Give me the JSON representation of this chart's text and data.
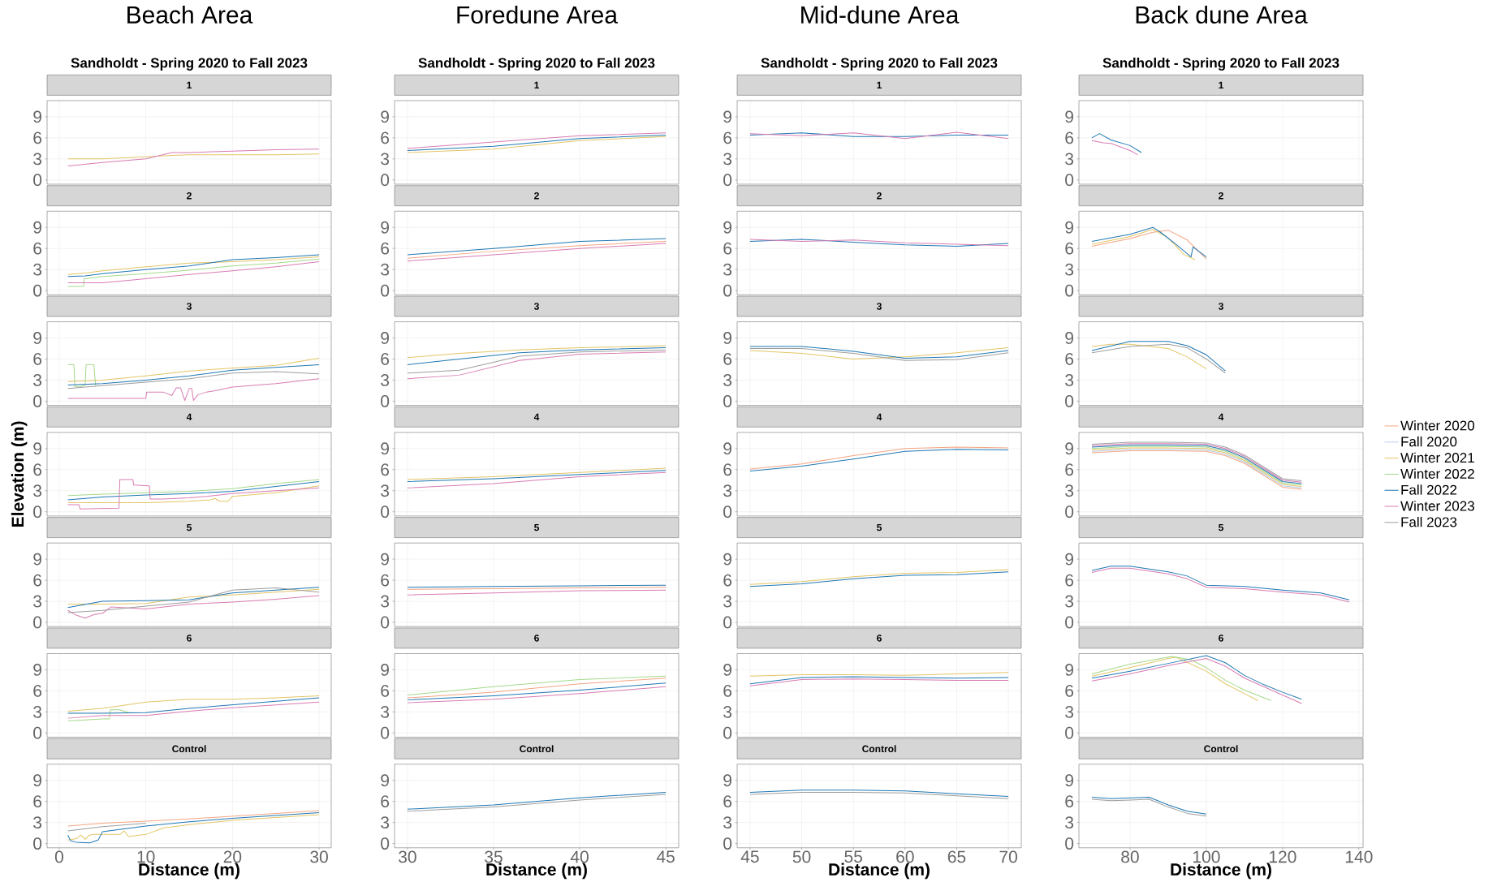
{
  "chart_data": [
    {
      "type": "line",
      "title": "1",
      "annotations": [
        "Beach Area",
        "Sandholdt - Spring 2020 to Fall 2023"
      ],
      "tick_labels": "y",
      "xlim": [
        -1.4,
        31.4
      ],
      "xticks": [
        0,
        10,
        20,
        30
      ],
      "ylim": [
        -0.6,
        11.3
      ],
      "yticks": [
        0,
        3,
        6,
        9
      ],
      "grid": true,
      "x": [
        1,
        5,
        10,
        13,
        15,
        20,
        25,
        30
      ],
      "series": [
        {
          "color": "#e3c565",
          "values": [
            3.0,
            3.0,
            3.3,
            3.5,
            3.6,
            3.6,
            3.6,
            3.7
          ]
        },
        {
          "color": "#d97cb3",
          "values": [
            2.0,
            2.5,
            3.0,
            3.9,
            3.9,
            4.1,
            4.3,
            4.4
          ]
        }
      ]
    },
    {
      "type": "line",
      "title": "1",
      "annotations": [
        "Foredune Area",
        "Sandholdt - Spring 2020 to Fall 2023"
      ],
      "tick_labels": "y",
      "xlim": [
        29.25,
        45.75
      ],
      "xticks": [
        30,
        35,
        40,
        45
      ],
      "ylim": [
        -0.6,
        11.3
      ],
      "yticks": [
        0,
        3,
        6,
        9
      ],
      "grid": true,
      "x": [
        30,
        35,
        40,
        45
      ],
      "series": [
        {
          "color": "#e3c565",
          "values": [
            3.9,
            4.4,
            5.6,
            6.2
          ]
        },
        {
          "color": "#1f78b4",
          "values": [
            4.2,
            4.8,
            5.9,
            6.4
          ]
        },
        {
          "color": "#d97cb3",
          "values": [
            4.5,
            5.4,
            6.3,
            6.7
          ]
        }
      ]
    },
    {
      "type": "line",
      "title": "1",
      "annotations": [
        "Mid-dune Area",
        "Sandholdt - Spring 2020 to Fall 2023"
      ],
      "tick_labels": "y",
      "xlim": [
        43.75,
        71.25
      ],
      "xticks": [
        45,
        50,
        55,
        60,
        65,
        70
      ],
      "ylim": [
        -0.6,
        11.3
      ],
      "yticks": [
        0,
        3,
        6,
        9
      ],
      "grid": true,
      "x": [
        45,
        50,
        55,
        60,
        65,
        70
      ],
      "series": [
        {
          "color": "#1f78b4",
          "values": [
            6.4,
            6.7,
            6.2,
            6.2,
            6.4,
            6.4
          ]
        },
        {
          "color": "#d97cb3",
          "values": [
            6.6,
            6.3,
            6.7,
            5.9,
            6.8,
            5.9
          ]
        }
      ]
    },
    {
      "type": "line",
      "title": "1",
      "annotations": [
        "Back dune Area",
        "Sandholdt - Spring 2020 to Fall 2023"
      ],
      "tick_labels": "y",
      "xlim": [
        66.6,
        141.1
      ],
      "xticks": [
        80,
        100,
        120,
        140
      ],
      "ylim": [
        -0.6,
        11.3
      ],
      "yticks": [
        0,
        3,
        6,
        9
      ],
      "grid": true,
      "x": [
        70,
        72,
        75,
        80,
        83
      ],
      "series": [
        {
          "color": "#1f78b4",
          "values": [
            6.0,
            6.6,
            5.7,
            4.9,
            3.9
          ]
        },
        {
          "color": "#d97cb3",
          "x": [
            70,
            73,
            75,
            80,
            82
          ],
          "values": [
            5.6,
            5.3,
            5.2,
            4.2,
            3.6
          ]
        }
      ]
    },
    {
      "type": "line",
      "title": "2",
      "tick_labels": "y",
      "xlim": [
        -1.4,
        31.4
      ],
      "xticks": [
        0,
        10,
        20,
        30
      ],
      "ylim": [
        -0.6,
        11.3
      ],
      "yticks": [
        0,
        3,
        6,
        9
      ],
      "grid": true,
      "x": [
        1,
        3,
        5,
        10,
        15,
        20,
        25,
        30
      ],
      "series": [
        {
          "color": "#e3c565",
          "values": [
            2.3,
            2.5,
            2.8,
            3.4,
            3.9,
            4.1,
            4.4,
            4.8
          ]
        },
        {
          "color": "#a5d98a",
          "x": [
            1,
            2.8,
            2.9,
            5,
            10,
            15,
            20,
            25,
            30
          ],
          "values": [
            0.6,
            0.6,
            1.7,
            2.0,
            2.4,
            2.9,
            3.5,
            3.9,
            4.5
          ]
        },
        {
          "color": "#1f78b4",
          "values": [
            2.0,
            2.1,
            2.4,
            3.0,
            3.5,
            4.4,
            4.7,
            5.1
          ]
        },
        {
          "color": "#d97cb3",
          "values": [
            1.1,
            1.1,
            1.1,
            1.7,
            2.3,
            2.8,
            3.4,
            4.1
          ]
        }
      ]
    },
    {
      "type": "line",
      "title": "2",
      "tick_labels": "y",
      "xlim": [
        29.25,
        45.75
      ],
      "xticks": [
        30,
        35,
        40,
        45
      ],
      "ylim": [
        -0.6,
        11.3
      ],
      "yticks": [
        0,
        3,
        6,
        9
      ],
      "grid": true,
      "x": [
        30,
        35,
        40,
        45
      ],
      "series": [
        {
          "color": "#f4a582",
          "values": [
            4.6,
            5.6,
            6.4,
            7.0
          ]
        },
        {
          "color": "#1f78b4",
          "values": [
            5.1,
            6.0,
            7.0,
            7.4
          ]
        },
        {
          "color": "#d97cb3",
          "values": [
            4.2,
            5.1,
            6.0,
            6.7
          ]
        }
      ]
    },
    {
      "type": "line",
      "title": "2",
      "tick_labels": "y",
      "xlim": [
        43.75,
        71.25
      ],
      "xticks": [
        45,
        50,
        55,
        60,
        65,
        70
      ],
      "ylim": [
        -0.6,
        11.3
      ],
      "yticks": [
        0,
        3,
        6,
        9
      ],
      "grid": true,
      "x": [
        45,
        50,
        55,
        60,
        65,
        70
      ],
      "series": [
        {
          "color": "#1f78b4",
          "values": [
            7.0,
            7.3,
            6.9,
            6.5,
            6.3,
            6.7
          ]
        },
        {
          "color": "#d97cb3",
          "values": [
            7.3,
            7.0,
            7.2,
            6.8,
            6.6,
            6.4
          ]
        }
      ]
    },
    {
      "type": "line",
      "title": "2",
      "tick_labels": "y",
      "xlim": [
        66.6,
        141.1
      ],
      "xticks": [
        80,
        100,
        120,
        140
      ],
      "ylim": [
        -0.6,
        11.3
      ],
      "yticks": [
        0,
        3,
        6,
        9
      ],
      "grid": true,
      "x": [
        70,
        80,
        86,
        90,
        95,
        100
      ],
      "series": [
        {
          "color": "#f4a582",
          "values": [
            6.3,
            7.4,
            8.3,
            8.6,
            7.2,
            4.5
          ]
        },
        {
          "color": "#e3c565",
          "x": [
            70,
            80,
            86,
            90,
            94,
            97
          ],
          "values": [
            6.6,
            7.7,
            8.7,
            7.5,
            5.2,
            4.4
          ]
        },
        {
          "color": "#1f78b4",
          "x": [
            70,
            80,
            86,
            88,
            92,
            96,
            96.5,
            100
          ],
          "values": [
            7.0,
            8.0,
            9.0,
            8.3,
            6.6,
            4.8,
            6.2,
            4.8
          ]
        }
      ]
    },
    {
      "type": "line",
      "title": "3",
      "tick_labels": "y",
      "xlim": [
        -1.4,
        31.4
      ],
      "xticks": [
        0,
        10,
        20,
        30
      ],
      "ylim": [
        -0.6,
        11.3
      ],
      "yticks": [
        0,
        3,
        6,
        9
      ],
      "grid": true,
      "x": [
        1,
        5,
        10,
        15,
        20,
        25,
        30
      ],
      "series": [
        {
          "color": "#e3c565",
          "values": [
            2.8,
            3.0,
            3.6,
            4.3,
            4.7,
            5.1,
            6.1
          ]
        },
        {
          "color": "#a5d98a",
          "x": [
            1,
            1.7,
            1.8,
            2.5,
            3,
            3.1,
            4,
            4.2
          ],
          "values": [
            5.2,
            5.2,
            2.1,
            2.1,
            2.3,
            5.2,
            5.2,
            2.2
          ]
        },
        {
          "color": "#1f78b4",
          "values": [
            2.3,
            2.5,
            3.0,
            3.6,
            4.4,
            4.8,
            5.2
          ]
        },
        {
          "color": "#d97cb3",
          "x": [
            1,
            10,
            10.1,
            12,
            13,
            13.5,
            14,
            14.5,
            15,
            15.3,
            15.5,
            16,
            17,
            18,
            20,
            25,
            30
          ],
          "values": [
            0.4,
            0.4,
            1.3,
            1.3,
            0.8,
            1.9,
            1.9,
            0.1,
            1.8,
            1.8,
            0.1,
            0.9,
            1.3,
            1.5,
            2.0,
            2.5,
            3.2
          ]
        },
        {
          "color": "#9e9e9e",
          "values": [
            1.8,
            2.2,
            2.7,
            3.2,
            4.0,
            4.2,
            3.9
          ]
        }
      ]
    },
    {
      "type": "line",
      "title": "3",
      "tick_labels": "y",
      "xlim": [
        29.25,
        45.75
      ],
      "xticks": [
        30,
        35,
        40,
        45
      ],
      "ylim": [
        -0.6,
        11.3
      ],
      "yticks": [
        0,
        3,
        6,
        9
      ],
      "grid": true,
      "x": [
        30,
        33,
        36.5,
        40,
        45
      ],
      "series": [
        {
          "color": "#e3c565",
          "values": [
            6.2,
            6.8,
            7.3,
            7.6,
            7.9
          ]
        },
        {
          "color": "#1f78b4",
          "values": [
            5.2,
            6.0,
            6.9,
            7.3,
            7.6
          ]
        },
        {
          "color": "#d97cb3",
          "values": [
            3.2,
            3.7,
            5.8,
            6.7,
            7.0
          ]
        },
        {
          "color": "#9e9e9e",
          "values": [
            4.0,
            4.4,
            6.4,
            7.0,
            7.3
          ]
        }
      ]
    },
    {
      "type": "line",
      "title": "3",
      "tick_labels": "y",
      "xlim": [
        43.75,
        71.25
      ],
      "xticks": [
        45,
        50,
        55,
        60,
        65,
        70
      ],
      "ylim": [
        -0.6,
        11.3
      ],
      "yticks": [
        0,
        3,
        6,
        9
      ],
      "grid": true,
      "x": [
        45,
        50,
        55,
        60,
        65,
        70
      ],
      "series": [
        {
          "color": "#e3c565",
          "values": [
            7.2,
            6.8,
            6.0,
            6.3,
            6.9,
            7.6
          ]
        },
        {
          "color": "#1f78b4",
          "values": [
            7.8,
            7.8,
            7.1,
            6.1,
            6.3,
            7.2
          ]
        },
        {
          "color": "#9e9e9e",
          "values": [
            7.5,
            7.5,
            6.8,
            5.8,
            5.9,
            6.9
          ]
        }
      ]
    },
    {
      "type": "line",
      "title": "3",
      "tick_labels": "y",
      "xlim": [
        66.6,
        141.1
      ],
      "xticks": [
        80,
        100,
        120,
        140
      ],
      "ylim": [
        -0.6,
        11.3
      ],
      "yticks": [
        0,
        3,
        6,
        9
      ],
      "grid": true,
      "x": [
        70,
        80,
        90,
        95,
        100,
        105
      ],
      "series": [
        {
          "color": "#e3c565",
          "x": [
            70,
            75,
            80,
            90,
            95,
            100
          ],
          "values": [
            7.8,
            8.1,
            8.1,
            7.5,
            6.3,
            4.6
          ]
        },
        {
          "color": "#1f78b4",
          "values": [
            7.2,
            8.5,
            8.5,
            7.9,
            6.6,
            4.3
          ]
        },
        {
          "color": "#9e9e9e",
          "values": [
            6.9,
            7.8,
            8.1,
            7.6,
            6.0,
            4.0
          ]
        }
      ]
    },
    {
      "type": "line",
      "title": "4",
      "ylabel": "Elevation (m)",
      "tick_labels": "y",
      "xlim": [
        -1.4,
        31.4
      ],
      "xticks": [
        0,
        10,
        20,
        30
      ],
      "ylim": [
        -0.6,
        11.3
      ],
      "yticks": [
        0,
        3,
        6,
        9
      ],
      "grid": true,
      "x": [
        1,
        5,
        10,
        15,
        20,
        25,
        30
      ],
      "series": [
        {
          "color": "#e3c565",
          "x": [
            1,
            10,
            15,
            17.5,
            18,
            18.5,
            19.5,
            20,
            25,
            30
          ],
          "values": [
            1.3,
            1.3,
            1.5,
            1.7,
            1.9,
            1.5,
            1.5,
            2.2,
            2.7,
            3.7
          ]
        },
        {
          "color": "#a5d98a",
          "values": [
            2.3,
            2.5,
            2.7,
            2.9,
            3.3,
            4.0,
            4.6
          ]
        },
        {
          "color": "#1f78b4",
          "values": [
            1.7,
            2.1,
            2.4,
            2.6,
            2.9,
            3.6,
            4.3
          ]
        },
        {
          "color": "#d97cb3",
          "x": [
            1,
            2.3,
            2.4,
            6.9,
            7.0,
            8.5,
            8.6,
            10.4,
            10.5,
            12,
            15,
            17,
            20,
            25,
            30
          ],
          "values": [
            1.0,
            1.0,
            0.4,
            0.5,
            4.6,
            4.6,
            3.8,
            3.7,
            1.8,
            1.8,
            2.0,
            2.2,
            2.6,
            3.0,
            3.4
          ]
        }
      ]
    },
    {
      "type": "line",
      "title": "4",
      "tick_labels": "y",
      "xlim": [
        29.25,
        45.75
      ],
      "xticks": [
        30,
        35,
        40,
        45
      ],
      "ylim": [
        -0.6,
        11.3
      ],
      "yticks": [
        0,
        3,
        6,
        9
      ],
      "grid": true,
      "x": [
        30,
        35,
        40,
        45
      ],
      "series": [
        {
          "color": "#e3c565",
          "values": [
            4.6,
            5.0,
            5.6,
            6.2
          ]
        },
        {
          "color": "#1f78b4",
          "values": [
            4.3,
            4.7,
            5.3,
            5.9
          ]
        },
        {
          "color": "#d97cb3",
          "values": [
            3.4,
            4.0,
            5.0,
            5.6
          ]
        }
      ]
    },
    {
      "type": "line",
      "title": "4",
      "tick_labels": "y",
      "xlim": [
        43.75,
        71.25
      ],
      "xticks": [
        45,
        50,
        55,
        60,
        65,
        70
      ],
      "ylim": [
        -0.6,
        11.3
      ],
      "yticks": [
        0,
        3,
        6,
        9
      ],
      "grid": true,
      "x": [
        45,
        50,
        55,
        60,
        65,
        70
      ],
      "series": [
        {
          "color": "#f4a582",
          "values": [
            6.1,
            6.8,
            8.0,
            9.0,
            9.2,
            9.1
          ]
        },
        {
          "color": "#1f78b4",
          "values": [
            5.8,
            6.5,
            7.5,
            8.6,
            8.9,
            8.8
          ]
        }
      ]
    },
    {
      "type": "line",
      "title": "4",
      "legend": "right",
      "tick_labels": "y",
      "xlim": [
        66.6,
        141.1
      ],
      "xticks": [
        80,
        100,
        120,
        140
      ],
      "ylim": [
        -0.6,
        11.3
      ],
      "yticks": [
        0,
        3,
        6,
        9
      ],
      "grid": true,
      "x": [
        70,
        80,
        90,
        100,
        105,
        110,
        115,
        120,
        125
      ],
      "series": [
        {
          "name": "Winter 2020",
          "color": "#f4a582",
          "values": [
            8.4,
            8.7,
            8.7,
            8.6,
            8.0,
            6.9,
            5.2,
            3.5,
            3.2
          ]
        },
        {
          "name": "Fall 2020",
          "color": "#b8cdee",
          "values": [
            8.6,
            8.9,
            8.9,
            8.8,
            8.2,
            7.1,
            5.4,
            3.7,
            3.4
          ]
        },
        {
          "name": "Winter 2021",
          "color": "#e3c565",
          "values": [
            8.8,
            9.1,
            9.1,
            9.0,
            8.4,
            7.3,
            5.6,
            3.9,
            3.6
          ]
        },
        {
          "name": "Winter 2022",
          "color": "#a5d98a",
          "values": [
            9.0,
            9.3,
            9.3,
            9.2,
            8.6,
            7.5,
            5.8,
            4.1,
            3.8
          ]
        },
        {
          "name": "Fall 2022",
          "color": "#1f78b4",
          "values": [
            9.2,
            9.5,
            9.5,
            9.4,
            8.8,
            7.7,
            6.0,
            4.3,
            4.0
          ]
        },
        {
          "name": "Winter 2023",
          "color": "#d97cb3",
          "values": [
            9.4,
            9.7,
            9.7,
            9.6,
            9.0,
            7.9,
            6.2,
            4.5,
            4.2
          ]
        },
        {
          "name": "Fall 2023",
          "color": "#9e9e9e",
          "values": [
            9.6,
            9.9,
            9.9,
            9.8,
            9.2,
            8.1,
            6.4,
            4.7,
            4.4
          ]
        }
      ]
    },
    {
      "type": "line",
      "title": "5",
      "tick_labels": "y",
      "xlim": [
        -1.4,
        31.4
      ],
      "xticks": [
        0,
        10,
        20,
        30
      ],
      "ylim": [
        -0.6,
        11.3
      ],
      "yticks": [
        0,
        3,
        6,
        9
      ],
      "grid": true,
      "x": [
        1,
        5,
        10,
        15,
        20,
        25,
        30
      ],
      "series": [
        {
          "color": "#e3c565",
          "values": [
            2.6,
            2.6,
            2.7,
            3.6,
            3.9,
            4.3,
            4.7
          ]
        },
        {
          "color": "#1f78b4",
          "values": [
            2.1,
            3.0,
            3.1,
            3.2,
            4.2,
            4.6,
            5.0
          ]
        },
        {
          "color": "#d97cb3",
          "x": [
            1,
            2,
            3,
            4,
            5,
            6,
            10,
            15,
            20,
            25,
            30
          ],
          "values": [
            1.7,
            1.0,
            0.6,
            1.1,
            1.3,
            2.2,
            1.9,
            2.6,
            2.9,
            3.3,
            3.8
          ]
        },
        {
          "color": "#9e9e9e",
          "values": [
            1.4,
            1.7,
            2.3,
            2.9,
            4.6,
            4.9,
            4.3
          ]
        }
      ]
    },
    {
      "type": "line",
      "title": "5",
      "tick_labels": "y",
      "xlim": [
        29.25,
        45.75
      ],
      "xticks": [
        30,
        35,
        40,
        45
      ],
      "ylim": [
        -0.6,
        11.3
      ],
      "yticks": [
        0,
        3,
        6,
        9
      ],
      "grid": true,
      "x": [
        30,
        35,
        40,
        45
      ],
      "series": [
        {
          "color": "#f4a582",
          "values": [
            4.7,
            4.8,
            4.9,
            5.0
          ]
        },
        {
          "color": "#1f78b4",
          "values": [
            5.0,
            5.1,
            5.2,
            5.3
          ]
        },
        {
          "color": "#d97cb3",
          "values": [
            3.9,
            4.2,
            4.5,
            4.6
          ]
        }
      ]
    },
    {
      "type": "line",
      "title": "5",
      "tick_labels": "y",
      "xlim": [
        43.75,
        71.25
      ],
      "xticks": [
        45,
        50,
        55,
        60,
        65,
        70
      ],
      "ylim": [
        -0.6,
        11.3
      ],
      "yticks": [
        0,
        3,
        6,
        9
      ],
      "grid": true,
      "x": [
        45,
        50,
        55,
        60,
        65,
        70
      ],
      "series": [
        {
          "color": "#e3c565",
          "values": [
            5.4,
            5.8,
            6.5,
            7.0,
            7.1,
            7.5
          ]
        },
        {
          "color": "#1f78b4",
          "values": [
            5.1,
            5.5,
            6.2,
            6.7,
            6.8,
            7.2
          ]
        }
      ]
    },
    {
      "type": "line",
      "title": "5",
      "tick_labels": "y",
      "xlim": [
        66.6,
        141.1
      ],
      "xticks": [
        80,
        100,
        120,
        140
      ],
      "ylim": [
        -0.6,
        11.3
      ],
      "yticks": [
        0,
        3,
        6,
        9
      ],
      "grid": true,
      "x": [
        70,
        75,
        80,
        90,
        95,
        100,
        110,
        120,
        130,
        137.5
      ],
      "series": [
        {
          "color": "#1f78b4",
          "values": [
            7.4,
            8.0,
            8.0,
            7.2,
            6.6,
            5.3,
            5.1,
            4.6,
            4.2,
            3.2
          ]
        },
        {
          "color": "#d97cb3",
          "values": [
            7.1,
            7.7,
            7.7,
            6.9,
            6.2,
            5.0,
            4.8,
            4.3,
            3.9,
            2.9
          ]
        }
      ]
    },
    {
      "type": "line",
      "title": "6",
      "tick_labels": "y",
      "xlim": [
        -1.4,
        31.4
      ],
      "xticks": [
        0,
        10,
        20,
        30
      ],
      "ylim": [
        -0.6,
        11.3
      ],
      "yticks": [
        0,
        3,
        6,
        9
      ],
      "grid": true,
      "x": [
        1,
        5,
        10,
        15,
        20,
        25,
        30
      ],
      "series": [
        {
          "color": "#e3c565",
          "values": [
            3.1,
            3.5,
            4.4,
            4.8,
            4.8,
            5.0,
            5.3
          ]
        },
        {
          "color": "#a5d98a",
          "x": [
            1,
            5,
            5.8,
            5.9,
            7,
            8
          ],
          "values": [
            1.7,
            2.0,
            2.0,
            3.3,
            3.3,
            2.9
          ]
        },
        {
          "color": "#1f78b4",
          "values": [
            2.8,
            2.8,
            2.9,
            3.5,
            4.0,
            4.5,
            5.0
          ]
        },
        {
          "color": "#d97cb3",
          "values": [
            2.1,
            2.5,
            2.5,
            3.1,
            3.6,
            4.0,
            4.4
          ]
        }
      ]
    },
    {
      "type": "line",
      "title": "6",
      "tick_labels": "y",
      "xlim": [
        29.25,
        45.75
      ],
      "xticks": [
        30,
        35,
        40,
        45
      ],
      "ylim": [
        -0.6,
        11.3
      ],
      "yticks": [
        0,
        3,
        6,
        9
      ],
      "grid": true,
      "x": [
        30,
        35,
        40,
        45
      ],
      "series": [
        {
          "color": "#f4a582",
          "values": [
            5.0,
            5.8,
            7.0,
            7.8
          ]
        },
        {
          "color": "#a5d98a",
          "values": [
            5.4,
            6.6,
            7.6,
            8.1
          ]
        },
        {
          "color": "#1f78b4",
          "values": [
            4.7,
            5.3,
            6.1,
            7.1
          ]
        },
        {
          "color": "#d97cb3",
          "values": [
            4.3,
            4.8,
            5.6,
            6.6
          ]
        }
      ]
    },
    {
      "type": "line",
      "title": "6",
      "tick_labels": "y",
      "xlim": [
        43.75,
        71.25
      ],
      "xticks": [
        45,
        50,
        55,
        60,
        65,
        70
      ],
      "ylim": [
        -0.6,
        11.3
      ],
      "yticks": [
        0,
        3,
        6,
        9
      ],
      "grid": true,
      "x": [
        45,
        50,
        55,
        60,
        65,
        70
      ],
      "series": [
        {
          "color": "#e3c565",
          "values": [
            8.1,
            8.3,
            8.3,
            8.2,
            8.4,
            8.6
          ]
        },
        {
          "color": "#1f78b4",
          "values": [
            7.0,
            7.9,
            8.0,
            7.9,
            7.8,
            7.9
          ]
        },
        {
          "color": "#d97cb3",
          "values": [
            6.7,
            7.6,
            7.7,
            7.6,
            7.5,
            7.5
          ]
        }
      ]
    },
    {
      "type": "line",
      "title": "6",
      "tick_labels": "y",
      "xlim": [
        66.6,
        141.1
      ],
      "xticks": [
        80,
        100,
        120,
        140
      ],
      "ylim": [
        -0.6,
        11.3
      ],
      "yticks": [
        0,
        3,
        6,
        9
      ],
      "grid": true,
      "x": [
        70,
        80,
        90,
        100,
        105,
        110,
        115,
        120,
        125
      ],
      "series": [
        {
          "color": "#e3c565",
          "x": [
            70,
            80,
            90,
            92,
            100,
            105,
            110,
            113.6
          ],
          "values": [
            8.1,
            9.3,
            10.6,
            10.8,
            8.8,
            7.0,
            5.6,
            4.6
          ]
        },
        {
          "color": "#a5d98a",
          "x": [
            70,
            80,
            91,
            96,
            100,
            105,
            110,
            117
          ],
          "values": [
            8.4,
            9.8,
            10.9,
            10.4,
            9.3,
            7.5,
            6.1,
            4.6
          ]
        },
        {
          "color": "#1f78b4",
          "values": [
            7.8,
            8.8,
            9.9,
            11.0,
            10.0,
            8.2,
            6.9,
            5.8,
            4.8
          ]
        },
        {
          "color": "#d97cb3",
          "values": [
            7.4,
            8.4,
            9.6,
            10.6,
            9.5,
            7.8,
            6.6,
            5.4,
            4.2
          ]
        }
      ]
    },
    {
      "type": "line",
      "title": "Control",
      "xlabel": "Distance (m)",
      "xlim": [
        -1.4,
        31.4
      ],
      "xticks": [
        0,
        10,
        20,
        30
      ],
      "ylim": [
        -0.6,
        11.3
      ],
      "yticks": [
        0,
        3,
        6,
        9
      ],
      "grid": true,
      "x": [
        1,
        5,
        10,
        15,
        20,
        25,
        30
      ],
      "series": [
        {
          "color": "#f4a582",
          "values": [
            2.5,
            2.9,
            3.2,
            3.5,
            3.9,
            4.3,
            4.7
          ]
        },
        {
          "color": "#e3c565",
          "x": [
            1,
            2,
            2.5,
            3,
            3.5,
            4,
            7,
            7.5,
            8,
            10,
            12,
            15,
            20,
            25,
            30
          ],
          "values": [
            0.5,
            0.7,
            1.2,
            0.6,
            1.2,
            1.3,
            1.3,
            1.8,
            1.0,
            1.3,
            2.2,
            2.7,
            3.3,
            3.7,
            4.1
          ]
        },
        {
          "color": "#1f78b4",
          "x": [
            1,
            1.3,
            2,
            3.5,
            4.5,
            5,
            10,
            15,
            20,
            25,
            30
          ],
          "values": [
            1.2,
            0.4,
            0.2,
            0.1,
            0.5,
            1.7,
            2.5,
            3.1,
            3.6,
            4.0,
            4.4
          ]
        },
        {
          "color": "#9e9e9e",
          "x": [
            1,
            5,
            10
          ],
          "values": [
            1.8,
            2.4,
            2.9
          ]
        }
      ]
    },
    {
      "type": "line",
      "title": "Control",
      "xlabel": "Distance (m)",
      "xlim": [
        29.25,
        45.75
      ],
      "xticks": [
        30,
        35,
        40,
        45
      ],
      "ylim": [
        -0.6,
        11.3
      ],
      "yticks": [
        0,
        3,
        6,
        9
      ],
      "grid": true,
      "x": [
        30,
        35,
        40,
        45
      ],
      "series": [
        {
          "color": "#1f78b4",
          "values": [
            4.9,
            5.5,
            6.5,
            7.3
          ]
        },
        {
          "color": "#9e9e9e",
          "values": [
            4.6,
            5.2,
            6.2,
            7.0
          ]
        }
      ]
    },
    {
      "type": "line",
      "title": "Control",
      "xlabel": "Distance (m)",
      "xlim": [
        43.75,
        71.25
      ],
      "xticks": [
        45,
        50,
        55,
        60,
        65,
        70
      ],
      "ylim": [
        -0.6,
        11.3
      ],
      "yticks": [
        0,
        3,
        6,
        9
      ],
      "grid": true,
      "x": [
        45,
        50,
        55,
        60,
        65,
        70
      ],
      "series": [
        {
          "color": "#1f78b4",
          "values": [
            7.3,
            7.6,
            7.6,
            7.5,
            7.1,
            6.7
          ]
        },
        {
          "color": "#9e9e9e",
          "values": [
            7.0,
            7.3,
            7.3,
            7.2,
            6.8,
            6.4
          ]
        }
      ]
    },
    {
      "type": "line",
      "title": "Control",
      "xlabel": "Distance (m)",
      "xlim": [
        66.6,
        141.1
      ],
      "xticks": [
        80,
        100,
        120,
        140
      ],
      "ylim": [
        -0.6,
        11.3
      ],
      "yticks": [
        0,
        3,
        6,
        9
      ],
      "grid": true,
      "x": [
        70,
        75,
        80,
        85,
        90,
        95,
        100
      ],
      "series": [
        {
          "color": "#1f78b4",
          "values": [
            6.6,
            6.4,
            6.5,
            6.6,
            5.5,
            4.6,
            4.2
          ]
        },
        {
          "color": "#9e9e9e",
          "values": [
            6.3,
            6.1,
            6.2,
            6.3,
            5.2,
            4.3,
            3.9
          ]
        }
      ]
    }
  ]
}
